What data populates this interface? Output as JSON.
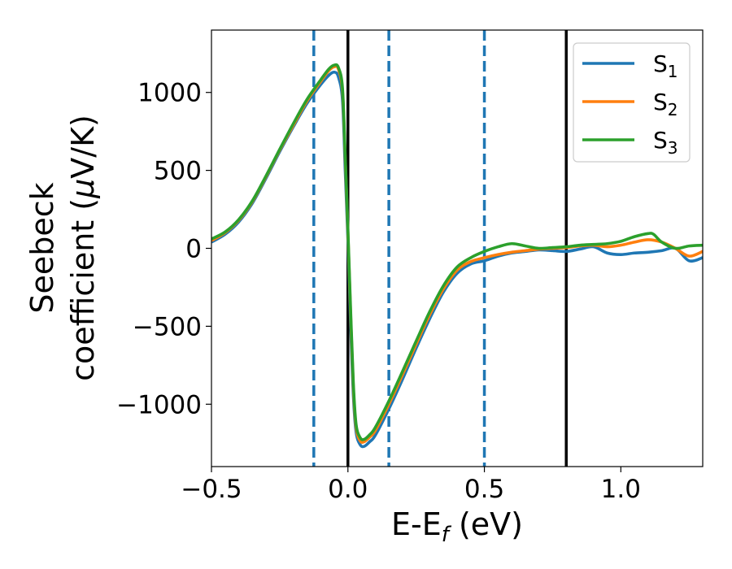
{
  "chart_data": {
    "type": "line",
    "xlabel": {
      "main": "E-E",
      "sub": "f",
      "rest": " (eV)"
    },
    "ylabel": {
      "line1": "Seebeck",
      "line2_pre": "coefficient  (",
      "line2_mu": "μ",
      "line2_post": "V/K)"
    },
    "xlim": [
      -0.5,
      1.3
    ],
    "ylim": [
      -1400,
      1400
    ],
    "xticks": [
      -0.5,
      0.0,
      0.5,
      1.0
    ],
    "xtick_labels": [
      "−0.5",
      "0.0",
      "0.5",
      "1.0"
    ],
    "yticks": [
      1000,
      500,
      0,
      -500,
      -1000
    ],
    "ytick_labels": [
      "1000",
      "500",
      "0",
      "−500",
      "−1000"
    ],
    "grid": false,
    "legend_placement": "top-right",
    "vlines": [
      {
        "x": -0.125,
        "style": "dashed",
        "color": "#1f77b4"
      },
      {
        "x": 0.0,
        "style": "solid",
        "color": "#000000"
      },
      {
        "x": 0.15,
        "style": "dashed",
        "color": "#1f77b4"
      },
      {
        "x": 0.5,
        "style": "dashed",
        "color": "#1f77b4"
      },
      {
        "x": 0.8,
        "style": "solid",
        "color": "#000000"
      }
    ],
    "series": [
      {
        "name": "S",
        "sub": "1",
        "color": "#1f77b4",
        "x": [
          -0.5,
          -0.45,
          -0.4,
          -0.35,
          -0.3,
          -0.25,
          -0.2,
          -0.15,
          -0.1,
          -0.07,
          -0.05,
          -0.035,
          -0.02,
          -0.01,
          0.0,
          0.01,
          0.02,
          0.03,
          0.045,
          0.06,
          0.08,
          0.1,
          0.15,
          0.2,
          0.25,
          0.3,
          0.35,
          0.4,
          0.45,
          0.5,
          0.55,
          0.6,
          0.65,
          0.7,
          0.75,
          0.8,
          0.85,
          0.9,
          0.95,
          1.0,
          1.05,
          1.1,
          1.15,
          1.2,
          1.25,
          1.3
        ],
        "y": [
          40,
          90,
          170,
          290,
          450,
          620,
          780,
          930,
          1050,
          1110,
          1130,
          1100,
          950,
          500,
          50,
          -500,
          -950,
          -1180,
          -1260,
          -1270,
          -1240,
          -1200,
          -1030,
          -840,
          -640,
          -450,
          -280,
          -160,
          -100,
          -80,
          -50,
          -30,
          -20,
          -10,
          -15,
          -20,
          -5,
          10,
          -30,
          -40,
          -30,
          -25,
          -15,
          0,
          -80,
          -60
        ],
        "name_sub": "1"
      },
      {
        "name": "S",
        "sub": "2",
        "color": "#ff7f0e",
        "x": [
          -0.5,
          -0.45,
          -0.4,
          -0.35,
          -0.3,
          -0.25,
          -0.2,
          -0.15,
          -0.1,
          -0.07,
          -0.05,
          -0.035,
          -0.02,
          -0.01,
          0.0,
          0.01,
          0.02,
          0.03,
          0.045,
          0.06,
          0.08,
          0.1,
          0.15,
          0.2,
          0.25,
          0.3,
          0.35,
          0.4,
          0.45,
          0.5,
          0.55,
          0.6,
          0.65,
          0.7,
          0.75,
          0.8,
          0.85,
          0.9,
          0.95,
          1.0,
          1.05,
          1.1,
          1.15,
          1.2,
          1.25,
          1.3
        ],
        "y": [
          50,
          100,
          180,
          300,
          460,
          630,
          790,
          945,
          1070,
          1140,
          1165,
          1150,
          1010,
          580,
          100,
          -430,
          -900,
          -1150,
          -1235,
          -1240,
          -1210,
          -1170,
          -1000,
          -810,
          -615,
          -425,
          -260,
          -140,
          -85,
          -60,
          -40,
          -25,
          -15,
          -5,
          0,
          5,
          15,
          20,
          10,
          20,
          40,
          55,
          40,
          0,
          -50,
          -20
        ]
      },
      {
        "name": "S",
        "sub": "3",
        "color": "#2ca02c",
        "x": [
          -0.5,
          -0.45,
          -0.4,
          -0.35,
          -0.3,
          -0.25,
          -0.2,
          -0.15,
          -0.1,
          -0.07,
          -0.05,
          -0.035,
          -0.02,
          -0.01,
          0.0,
          0.01,
          0.02,
          0.03,
          0.045,
          0.06,
          0.08,
          0.1,
          0.15,
          0.2,
          0.25,
          0.3,
          0.35,
          0.4,
          0.45,
          0.5,
          0.55,
          0.6,
          0.65,
          0.7,
          0.75,
          0.8,
          0.85,
          0.9,
          0.95,
          1.0,
          1.05,
          1.1,
          1.12,
          1.15,
          1.2,
          1.25,
          1.3
        ],
        "y": [
          60,
          105,
          185,
          305,
          465,
          635,
          800,
          955,
          1080,
          1150,
          1175,
          1160,
          1030,
          600,
          120,
          -400,
          -870,
          -1130,
          -1215,
          -1225,
          -1195,
          -1150,
          -980,
          -790,
          -595,
          -405,
          -240,
          -120,
          -60,
          -20,
          10,
          30,
          15,
          0,
          5,
          10,
          20,
          25,
          30,
          45,
          75,
          95,
          90,
          40,
          0,
          15,
          20
        ]
      }
    ]
  }
}
